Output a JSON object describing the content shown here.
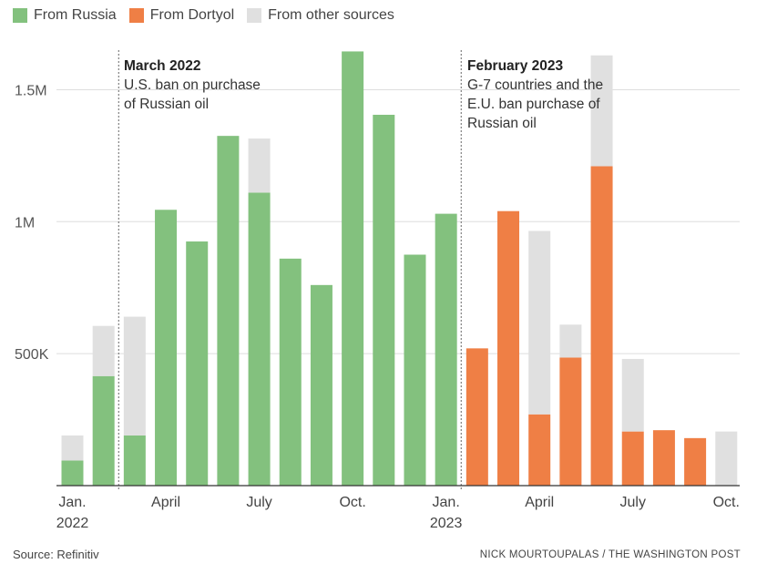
{
  "legend": {
    "items": [
      {
        "label": "From Russia",
        "color": "#83c17e",
        "icon": "square-swatch"
      },
      {
        "label": "From Dortyol",
        "color": "#ef7f45",
        "icon": "square-swatch"
      },
      {
        "label": "From other sources",
        "color": "#e0e0e0",
        "icon": "square-swatch"
      }
    ]
  },
  "annotations": [
    {
      "title": "March 2022",
      "lines": [
        "U.S. ban on purchase",
        "of Russian oil"
      ],
      "at_month": "2022-03"
    },
    {
      "title": "February 2023",
      "lines": [
        "G-7 countries and the",
        "E.U. ban purchase of",
        "Russian oil"
      ],
      "at_month": "2023-02"
    }
  ],
  "footer": {
    "source": "Source: Refinitiv",
    "credit": "NICK MOURTOUPALAS / THE WASHINGTON POST"
  },
  "chart_data": {
    "type": "bar",
    "stacked": true,
    "categories": [
      "2022-01",
      "2022-02",
      "2022-03",
      "2022-04",
      "2022-05",
      "2022-06",
      "2022-07",
      "2022-08",
      "2022-09",
      "2022-10",
      "2022-11",
      "2022-12",
      "2023-01",
      "2023-02",
      "2023-03",
      "2023-04",
      "2023-05",
      "2023-06",
      "2023-07",
      "2023-08",
      "2023-09",
      "2023-10"
    ],
    "series": [
      {
        "name": "From Russia",
        "color": "#83c17e",
        "values": [
          95000,
          415000,
          190000,
          1045000,
          925000,
          1325000,
          1110000,
          860000,
          760000,
          1645000,
          1405000,
          875000,
          1030000,
          0,
          0,
          0,
          0,
          0,
          0,
          0,
          0,
          0
        ]
      },
      {
        "name": "From Dortyol",
        "color": "#ef7f45",
        "values": [
          0,
          0,
          0,
          0,
          0,
          0,
          0,
          0,
          0,
          0,
          0,
          0,
          0,
          520000,
          1040000,
          270000,
          485000,
          1210000,
          205000,
          210000,
          180000,
          0
        ]
      },
      {
        "name": "From other sources",
        "color": "#e0e0e0",
        "values": [
          95000,
          190000,
          450000,
          0,
          0,
          0,
          205000,
          0,
          0,
          0,
          0,
          0,
          0,
          0,
          0,
          695000,
          125000,
          420000,
          275000,
          0,
          0,
          205000
        ]
      }
    ],
    "ylim": [
      0,
      1650000
    ],
    "yticks": [
      {
        "value": 500000,
        "label": "500K"
      },
      {
        "value": 1000000,
        "label": "1M"
      },
      {
        "value": 1500000,
        "label": "1.5M"
      }
    ],
    "xticks": [
      {
        "index": 0,
        "label": "Jan.",
        "sublabel": "2022"
      },
      {
        "index": 3,
        "label": "April",
        "sublabel": ""
      },
      {
        "index": 6,
        "label": "July",
        "sublabel": ""
      },
      {
        "index": 9,
        "label": "Oct.",
        "sublabel": ""
      },
      {
        "index": 12,
        "label": "Jan.",
        "sublabel": "2023"
      },
      {
        "index": 15,
        "label": "April",
        "sublabel": ""
      },
      {
        "index": 18,
        "label": "July",
        "sublabel": ""
      },
      {
        "index": 21,
        "label": "Oct.",
        "sublabel": ""
      }
    ],
    "grid": true,
    "xlabel": "",
    "ylabel": ""
  }
}
